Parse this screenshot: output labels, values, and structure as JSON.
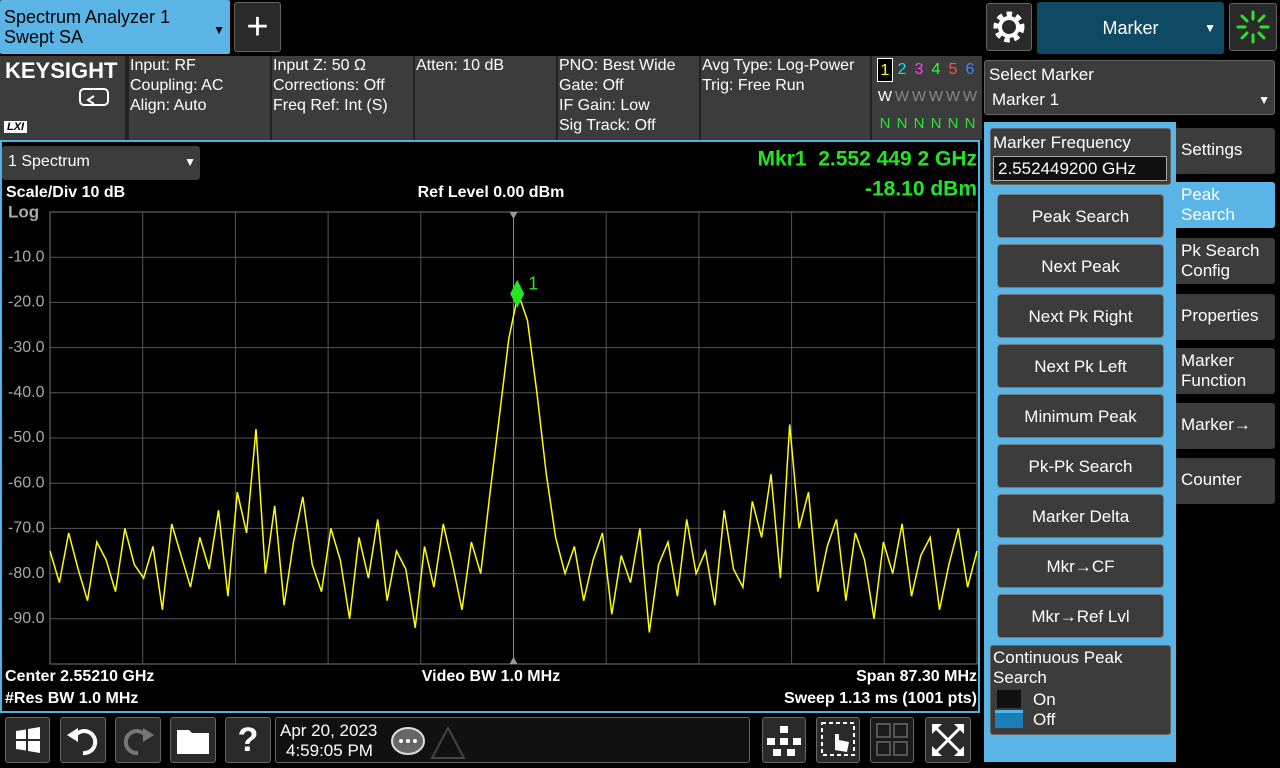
{
  "header": {
    "analyzer": [
      "Spectrum Analyzer 1",
      "Swept SA"
    ],
    "mode_tab": "Marker"
  },
  "info": {
    "logo": "KEYSIGHT",
    "lxi": "LXI",
    "columns": [
      [
        "Input: RF",
        "Coupling: AC",
        "Align: Auto"
      ],
      [
        "Input Z: 50 Ω",
        "Corrections: Off",
        "Freq Ref: Int (S)"
      ],
      [
        "Atten: 10 dB"
      ],
      [
        "PNO: Best Wide",
        "Gate: Off",
        "IF Gain: Low",
        "Sig Track: Off"
      ],
      [
        "Avg Type: Log-Power",
        "Trig: Free Run"
      ]
    ],
    "traces": {
      "numbers": [
        "1",
        "2",
        "3",
        "4",
        "5",
        "6"
      ],
      "colors": [
        "#ffff00",
        "#00e5ff",
        "#ff40ff",
        "#30ff30",
        "#ff5050",
        "#4080ff"
      ],
      "types": [
        "W",
        "W",
        "W",
        "W",
        "W",
        "W"
      ],
      "detectors": [
        "N",
        "N",
        "N",
        "N",
        "N",
        "N"
      ]
    }
  },
  "spectrum": {
    "window": "1 Spectrum",
    "scale": "Scale/Div 10 dB",
    "ref_level": "Ref Level 0.00 dBm",
    "log": "Log",
    "marker_readout": [
      "Mkr1  2.552 449 2 GHz",
      "-18.10 dBm"
    ],
    "bottom": [
      "Center 2.55210 GHz",
      "Video BW 1.0 MHz",
      "Span 87.30 MHz",
      "#Res BW 1.0 MHz",
      "Sweep 1.13 ms (1001 pts)"
    ],
    "plot": {
      "type": "line",
      "xlim": [
        2.50845,
        2.59575
      ],
      "ylim": [
        -100,
        0
      ],
      "yticks": [
        {
          "value": -10,
          "label": "-10.0"
        },
        {
          "value": -20,
          "label": "-20.0"
        },
        {
          "value": -30,
          "label": "-30.0"
        },
        {
          "value": -40,
          "label": "-40.0"
        },
        {
          "value": -50,
          "label": "-50.0"
        },
        {
          "value": -60,
          "label": "-60.0"
        },
        {
          "value": -70,
          "label": "-70.0"
        },
        {
          "value": -80,
          "label": "-80.0"
        },
        {
          "value": -90,
          "label": "-90.0"
        }
      ],
      "grid": true,
      "trace": {
        "color": "#ffff00",
        "values": [
          -75,
          -82,
          -71,
          -79,
          -86,
          -73,
          -77,
          -84,
          -70,
          -78,
          -81,
          -74,
          -88,
          -69,
          -76,
          -83,
          -72,
          -79,
          -66,
          -85,
          -62,
          -71,
          -48,
          -80,
          -65,
          -87,
          -73,
          -63,
          -78,
          -84,
          -70,
          -77,
          -90,
          -72,
          -81,
          -68,
          -86,
          -75,
          -79,
          -92,
          -74,
          -83,
          -69,
          -78,
          -88,
          -73,
          -80,
          -62,
          -45,
          -28,
          -18,
          -24,
          -40,
          -58,
          -72,
          -80,
          -74,
          -86,
          -77,
          -71,
          -89,
          -76,
          -82,
          -70,
          -93,
          -78,
          -73,
          -85,
          -68,
          -80,
          -75,
          -87,
          -66,
          -79,
          -83,
          -64,
          -72,
          -58,
          -81,
          -47,
          -70,
          -62,
          -84,
          -74,
          -68,
          -86,
          -71,
          -77,
          -90,
          -73,
          -80,
          -69,
          -85,
          -76,
          -72,
          -88,
          -78,
          -70,
          -83,
          -75
        ]
      },
      "marker": {
        "label": "1",
        "frequency": 2.5524492,
        "value": -18.1,
        "color": "#22e622"
      }
    }
  },
  "right_panel": {
    "select_label": "Select Marker",
    "select_value": "Marker 1",
    "freq_label": "Marker Frequency",
    "freq_value": "2.552449200 GHz",
    "buttons": [
      "Peak Search",
      "Next Peak",
      "Next Pk Right",
      "Next Pk Left",
      "Minimum Peak",
      "Pk-Pk Search",
      "Marker Delta",
      "Mkr→CF",
      "Mkr→Ref Lvl"
    ],
    "continuous": {
      "label": "Continuous Peak Search",
      "on": "On",
      "off": "Off"
    },
    "tabs": [
      "Settings",
      "Peak Search",
      "Pk Search Config",
      "Properties",
      "Marker Function",
      "Marker→",
      "Counter"
    ],
    "active_tab": 1
  },
  "taskbar": {
    "date": "Apr 20, 2023",
    "time": "4:59:05 PM"
  }
}
